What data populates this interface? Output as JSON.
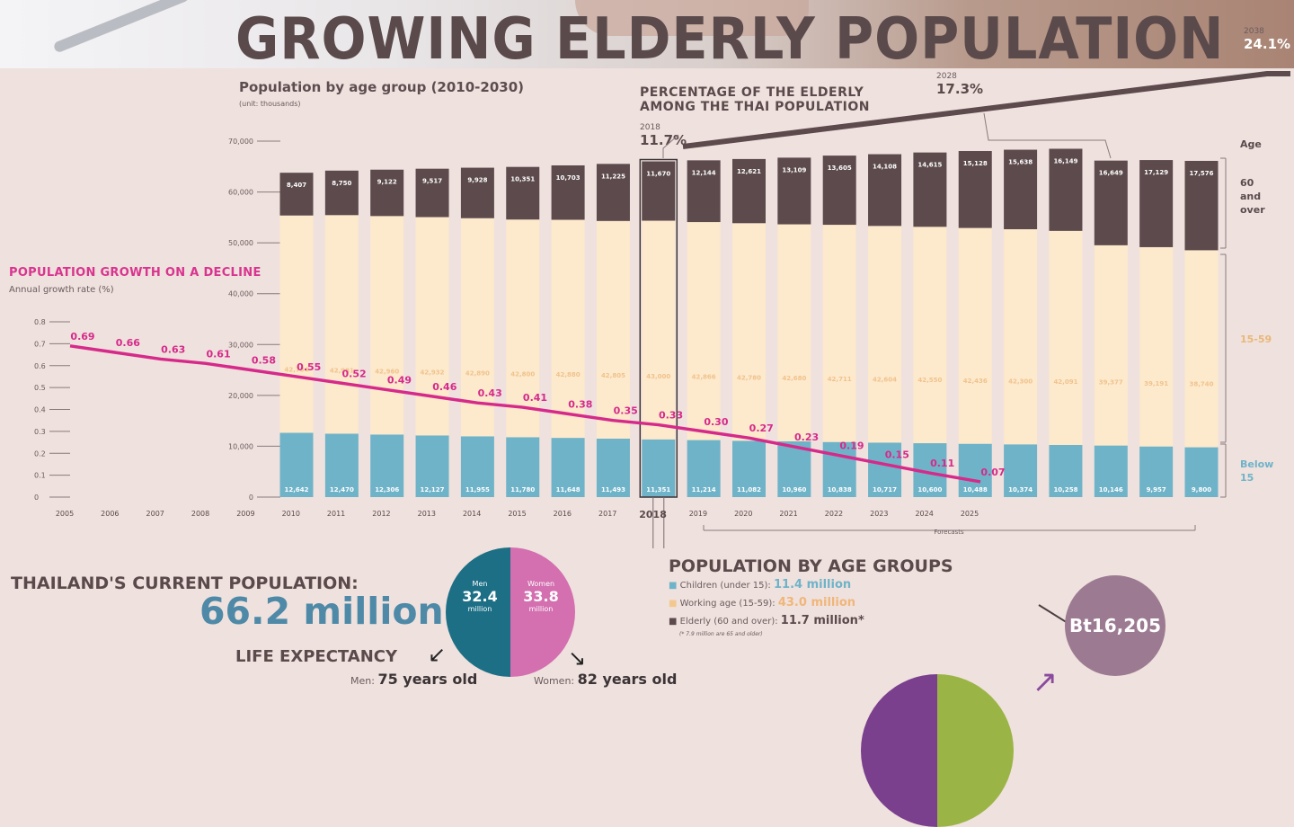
{
  "header": {
    "title": "GROWING ELDERLY POPULATION",
    "subtitle": "Population by age group (2010-2030)",
    "unit": "(unit: thousands)"
  },
  "elderly_section": {
    "title_line1": "PERCENTAGE OF THE ELDERLY",
    "title_line2": "AMONG THE THAI POPULATION",
    "callouts": [
      {
        "year": "2018",
        "value": "11.7%"
      },
      {
        "year": "2028",
        "value": "17.3%"
      },
      {
        "year": "2038",
        "value": "24.1%"
      }
    ]
  },
  "growth_section": {
    "title": "POPULATION GROWTH ON A DECLINE",
    "subtitle": "Annual growth rate (%)"
  },
  "age_labels": {
    "title": "Age",
    "elderly": [
      "60",
      "and",
      "over"
    ],
    "working": "15-59",
    "children": [
      "Below",
      "15"
    ]
  },
  "forecast_label": "Forecasts",
  "colors": {
    "children": "#6fb3c9",
    "working": "#fde9cc",
    "elderly": "#5c4a4c",
    "growth_line": "#d62a8a",
    "men": "#1d6f86",
    "women": "#d46fb0"
  },
  "chart_data": [
    {
      "type": "bar",
      "stacked": true,
      "categories": [
        "2010",
        "2011",
        "2012",
        "2013",
        "2014",
        "2015",
        "2016",
        "2017",
        "2018",
        "2019",
        "2020",
        "2021",
        "2022",
        "2023",
        "2024",
        "2025",
        "2026",
        "2027",
        "2028",
        "2029",
        "2030"
      ],
      "series": [
        {
          "name": "Below 15",
          "values": [
            12642,
            12470,
            12306,
            12127,
            11955,
            11780,
            11648,
            11493,
            11351,
            11214,
            11082,
            10960,
            10838,
            10717,
            10600,
            10488,
            10374,
            10258,
            10146,
            9957,
            9800
          ]
        },
        {
          "name": "15-59",
          "values": [
            42734,
            42981,
            42960,
            42932,
            42890,
            42800,
            42880,
            42805,
            43000,
            42866,
            42780,
            42680,
            42711,
            42604,
            42550,
            42436,
            42300,
            42091,
            39377,
            39191,
            38740
          ]
        },
        {
          "name": "60 and over",
          "values": [
            8407,
            8750,
            9122,
            9517,
            9928,
            10351,
            10703,
            11225,
            11670,
            12144,
            12621,
            13109,
            13605,
            14108,
            14615,
            15128,
            15638,
            16149,
            16649,
            17129,
            17576
          ]
        }
      ],
      "bar_labels": {
        "Below 15": [
          "12,642",
          "12,470",
          "12,306",
          "12,127",
          "11,955",
          "11,780",
          "11,648",
          "11,493",
          "11,351",
          "11,214",
          "11,082",
          "10,960",
          "10,838",
          "10,717",
          "10,600",
          "10,488",
          "10,374",
          "10,258",
          "10,146",
          "9,957",
          "9,800"
        ],
        "15-59": [
          "42,734",
          "42,981",
          "42,960",
          "42,932",
          "42,890",
          "42,800",
          "42,880",
          "42,805",
          "43,000",
          "42,866",
          "42,780",
          "42,680",
          "42,711",
          "42,604",
          "42,550",
          "42,436",
          "42,300",
          "42,091",
          "39,377",
          "39,191",
          "38,740"
        ],
        "60 and over": [
          "8,407",
          "8,750",
          "9,122",
          "9,517",
          "9,928",
          "10,351",
          "10,703",
          "11,225",
          "11,670",
          "12,144",
          "12,621",
          "13,109",
          "13,605",
          "14,108",
          "14,615",
          "15,128",
          "15,638",
          "16,149",
          "16,649",
          "17,129",
          "17,576"
        ]
      },
      "ylim": [
        0,
        70000
      ],
      "yticks": [
        "0",
        "10,000",
        "20,000",
        "30,000",
        "40,000",
        "50,000",
        "60,000",
        "70,000"
      ],
      "highlight": "2018"
    },
    {
      "type": "line",
      "x": [
        "2005",
        "2006",
        "2007",
        "2008",
        "2009",
        "2010",
        "2011",
        "2012",
        "2013",
        "2014",
        "2015",
        "2016",
        "2017",
        "2018",
        "2019",
        "2020",
        "2021",
        "2022",
        "2023",
        "2024",
        "2025"
      ],
      "values": [
        0.69,
        0.66,
        0.63,
        0.61,
        0.58,
        0.55,
        0.52,
        0.49,
        0.46,
        0.43,
        0.41,
        0.38,
        0.35,
        0.33,
        0.3,
        0.27,
        0.23,
        0.19,
        0.15,
        0.11,
        0.07
      ],
      "labels": [
        "0.69",
        "0.66",
        "0.63",
        "0.61",
        "0.58",
        "0.55",
        "0.52",
        "0.49",
        "0.46",
        "0.43",
        "0.41",
        "0.38",
        "0.35",
        "0.33",
        "0.30",
        "0.27",
        "0.23",
        "0.19",
        "0.15",
        "0.11",
        "0.07"
      ],
      "ylim": [
        0,
        0.8
      ],
      "yticks": [
        "0",
        "0.1",
        "0.2",
        "0.3",
        "0.4",
        "0.5",
        "0.6",
        "0.7",
        "0.8"
      ]
    },
    {
      "type": "pie",
      "categories": [
        "Men",
        "Women"
      ],
      "values": [
        32.4,
        33.8
      ],
      "labels": [
        "32.4",
        "33.8"
      ],
      "unit": "million"
    }
  ],
  "current_population": {
    "title": "THAILAND'S CURRENT POPULATION:",
    "value": "66.2 million"
  },
  "life_expectancy": {
    "title": "LIFE EXPECTANCY",
    "men_label": "Men:",
    "men_value": "75 years old",
    "women_label": "Women:",
    "women_value": "82 years old"
  },
  "age_groups": {
    "title": "POPULATION BY AGE GROUPS",
    "children_label": "Children (under 15):",
    "children_value": "11.4 million",
    "working_label": "Working age (15-59):",
    "working_value": "43.0 million",
    "elderly_label": "Elderly (60 and over):",
    "elderly_value": "11.7 million*",
    "note": "(* 7.9 million are 65 and older)"
  },
  "income_circle": "Bt16,205"
}
